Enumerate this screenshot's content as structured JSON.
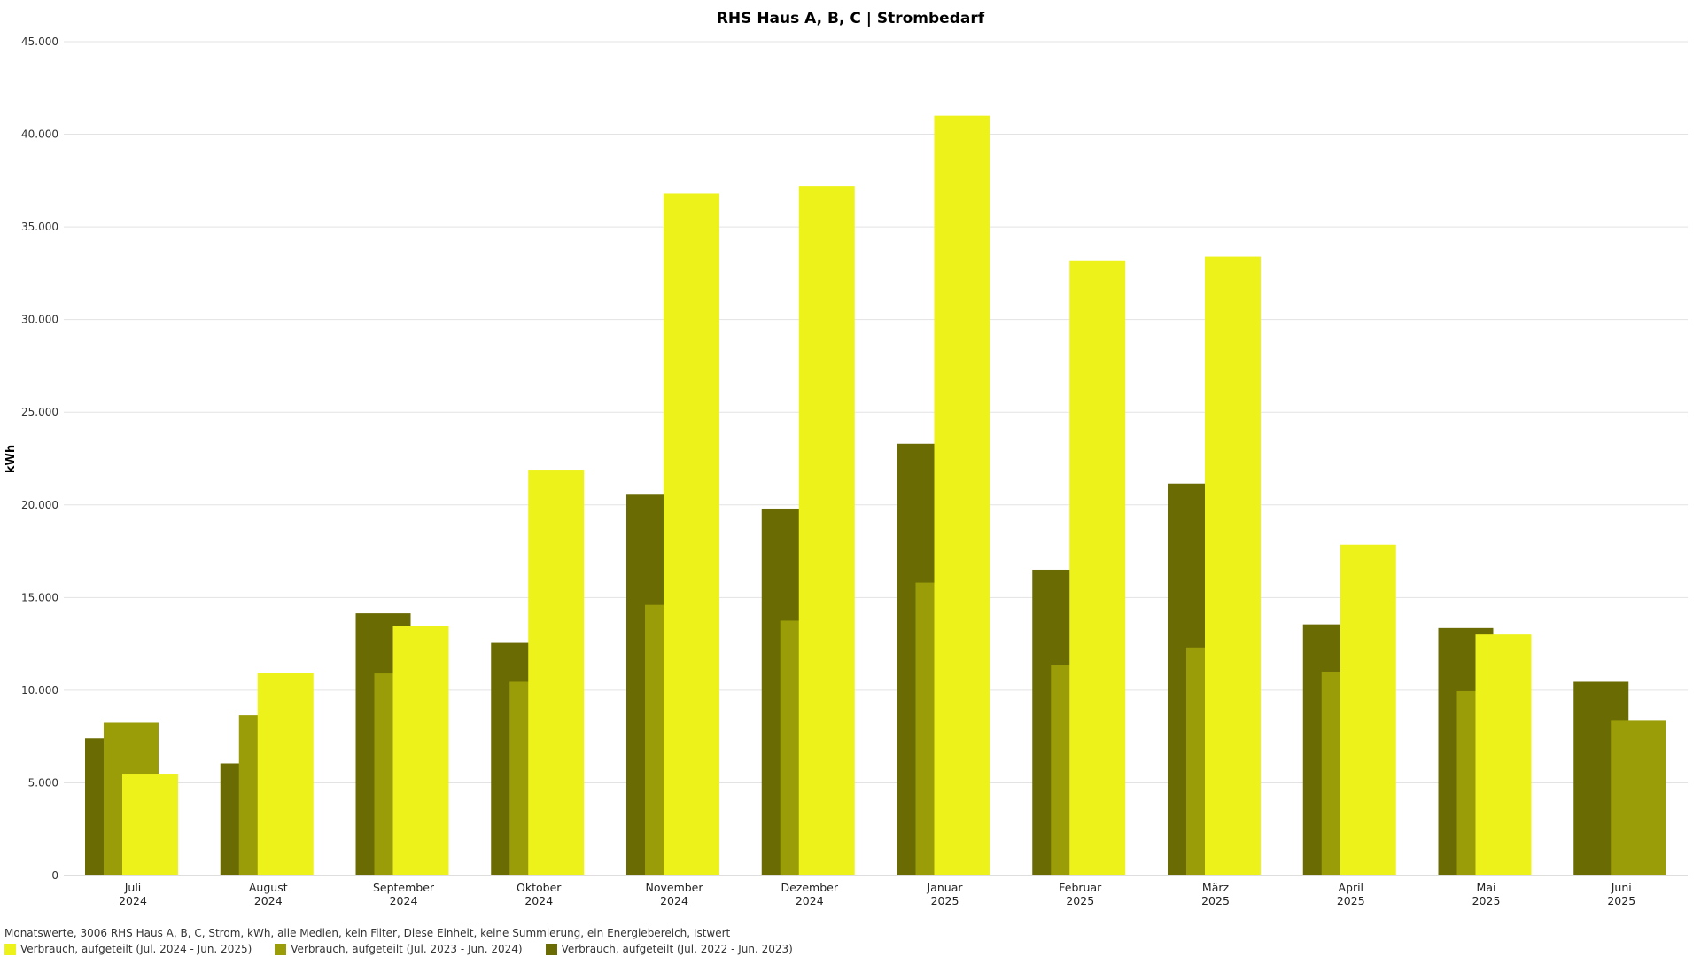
{
  "chart_data": {
    "type": "bar",
    "title": "RHS Haus A, B, C | Strombedarf",
    "ylabel": "kWh",
    "ylim": [
      0,
      45000
    ],
    "yticks": [
      0,
      5000,
      10000,
      15000,
      20000,
      25000,
      30000,
      35000,
      40000,
      45000
    ],
    "ytick_labels": [
      "0",
      "5.000",
      "10.000",
      "15.000",
      "20.000",
      "25.000",
      "30.000",
      "35.000",
      "40.000",
      "45.000"
    ],
    "grid": true,
    "legend_placement": "bottom-left",
    "categories": [
      [
        "Juli",
        "2024"
      ],
      [
        "August",
        "2024"
      ],
      [
        "September",
        "2024"
      ],
      [
        "Oktober",
        "2024"
      ],
      [
        "November",
        "2024"
      ],
      [
        "Dezember",
        "2024"
      ],
      [
        "Januar",
        "2025"
      ],
      [
        "Februar",
        "2025"
      ],
      [
        "März",
        "2025"
      ],
      [
        "April",
        "2025"
      ],
      [
        "Mai",
        "2025"
      ],
      [
        "Juni",
        "2025"
      ]
    ],
    "series": [
      {
        "name": "Verbrauch, aufgeteilt (Jul. 2022 - Jun. 2023)",
        "color": "#6b6b04",
        "values": [
          7400,
          6050,
          14150,
          12550,
          20550,
          19800,
          23300,
          16500,
          21150,
          13550,
          13350,
          10450
        ]
      },
      {
        "name": "Verbrauch, aufgeteilt (Jul. 2023 - Jun. 2024)",
        "color": "#9a9d08",
        "values": [
          8250,
          8650,
          10900,
          10450,
          14600,
          13750,
          15800,
          11350,
          12300,
          11000,
          9950,
          8350
        ]
      },
      {
        "name": "Verbrauch, aufgeteilt (Jul. 2024 - Jun. 2025)",
        "color": "#eef21b",
        "values": [
          5450,
          10950,
          13450,
          21900,
          36800,
          37200,
          41000,
          33200,
          33400,
          17850,
          13000,
          null
        ]
      }
    ]
  },
  "footer": {
    "description": "Monatswerte, 3006 RHS Haus A, B, C, Strom, kWh, alle Medien, kein Filter, Diese Einheit, keine Summierung, ein Energiebereich, Istwert"
  },
  "legend": [
    {
      "label": "Verbrauch, aufgeteilt (Jul. 2024 - Jun. 2025)",
      "color": "#eef21b"
    },
    {
      "label": "Verbrauch, aufgeteilt (Jul. 2023 - Jun. 2024)",
      "color": "#9a9d08"
    },
    {
      "label": "Verbrauch, aufgeteilt (Jul. 2022 - Jun. 2023)",
      "color": "#6b6b04"
    }
  ]
}
